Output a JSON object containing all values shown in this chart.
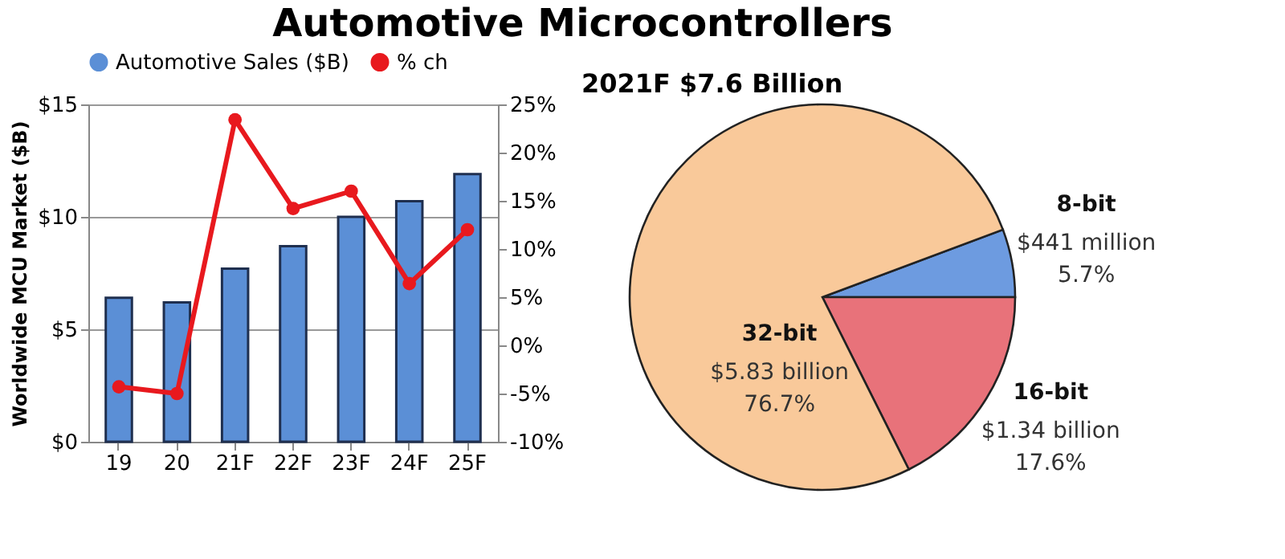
{
  "chart_data": [
    {
      "type": "bar",
      "title": "Automotive Microcontrollers",
      "ylabel": "Worldwide MCU Market ($B)",
      "categories": [
        "19",
        "20",
        "21F",
        "22F",
        "23F",
        "24F",
        "25F"
      ],
      "ylim": [
        0,
        15
      ],
      "yticks": [
        {
          "value": 0,
          "label": "$0"
        },
        {
          "value": 5,
          "label": "$5"
        },
        {
          "value": 10,
          "label": "$10"
        },
        {
          "value": 15,
          "label": "$15"
        }
      ],
      "y2lim": [
        -10,
        25
      ],
      "y2ticks": [
        {
          "value": -10,
          "label": "-10%"
        },
        {
          "value": -5,
          "label": "-5%"
        },
        {
          "value": 0,
          "label": "0%"
        },
        {
          "value": 5,
          "label": "5%"
        },
        {
          "value": 10,
          "label": "10%"
        },
        {
          "value": 15,
          "label": "15%"
        },
        {
          "value": 20,
          "label": "20%"
        },
        {
          "value": 25,
          "label": "25%"
        }
      ],
      "grid": "y",
      "legend": "top",
      "marker": "circle",
      "series": [
        {
          "name": "Automotive Sales ($B)",
          "type": "bar",
          "color": "#5b8fd6",
          "values": [
            6.4,
            6.2,
            7.7,
            8.7,
            10.0,
            10.7,
            11.9
          ]
        },
        {
          "name": "% ch",
          "type": "line",
          "axis": "y2",
          "color": "#e8191e",
          "values": [
            -4.3,
            -5.0,
            23.4,
            14.2,
            16.0,
            6.4,
            12.0
          ]
        }
      ]
    },
    {
      "type": "pie",
      "title": "2021F $7.6 Billion",
      "categories": [
        "8-bit",
        "16-bit",
        "32-bit"
      ],
      "values": [
        5.7,
        17.6,
        76.7
      ],
      "colors": [
        "#6d9be0",
        "#e8727a",
        "#f9c99a"
      ],
      "value_labels": [
        "$441 million\n5.7%",
        "$1.34 billion\n17.6%",
        "$5.83 billion\n76.7%"
      ]
    }
  ]
}
